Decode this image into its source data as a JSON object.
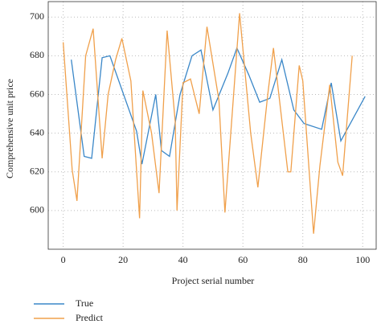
{
  "chart_data": {
    "type": "line",
    "xlabel": "Project serial number",
    "ylabel": "Comprehensive unit price",
    "xlim": [
      -5,
      104.5
    ],
    "ylim": [
      580,
      708
    ],
    "xticks": [
      0,
      20,
      40,
      60,
      80,
      100
    ],
    "yticks": [
      600,
      620,
      640,
      660,
      680,
      700
    ],
    "grid": true,
    "legend": "below",
    "series": [
      {
        "name": "True",
        "color": "#3a87c8",
        "x": [
          2.7,
          7,
          9.5,
          13,
          15.6,
          24.5,
          26.3,
          30.9,
          32.8,
          35.5,
          39,
          43,
          46,
          50,
          55,
          58,
          62,
          65.6,
          69,
          73,
          77,
          80.4,
          86.3,
          89.5,
          92.7,
          100.8
        ],
        "values": [
          678,
          628,
          627,
          679,
          680,
          641,
          624,
          660,
          631,
          628,
          660,
          680,
          683,
          652,
          671,
          684,
          670,
          656,
          658,
          678,
          652,
          645,
          642,
          666,
          636,
          659
        ]
      },
      {
        "name": "Predict",
        "color": "#f0a04b",
        "x": [
          0,
          3,
          4.6,
          7.5,
          10,
          13,
          15,
          17.5,
          19.6,
          22.6,
          25.5,
          26.6,
          29.5,
          32,
          34.7,
          37.4,
          38,
          40,
          42.5,
          45.4,
          48,
          52,
          54,
          58.9,
          62.6,
          65,
          68.3,
          70.2,
          75,
          76,
          78.8,
          80,
          83.6,
          85.7,
          89,
          91.7,
          93.3,
          96.5
        ],
        "values": [
          687,
          621,
          605,
          680,
          694,
          627,
          660,
          678,
          689,
          667,
          596,
          662,
          640,
          609,
          693,
          646,
          600,
          666,
          668,
          650,
          695,
          657,
          599,
          702,
          640,
          612,
          660,
          684,
          620,
          620,
          675,
          667,
          588,
          623,
          665,
          625,
          618,
          680
        ]
      }
    ]
  }
}
